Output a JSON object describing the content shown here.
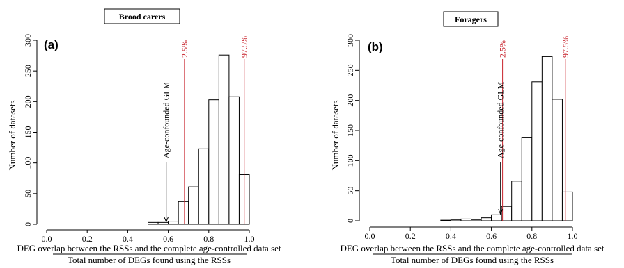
{
  "colors": {
    "bars": "#ffffff",
    "bar_stroke": "#000000",
    "quantile_lines": "#c8232c",
    "text": "#000000"
  },
  "chart_data": [
    {
      "type": "bar",
      "panel_label": "(a)",
      "title": "Brood carers",
      "xlabel": "DEG overlap between the RSSs and the complete age-controlled data set",
      "xlabel_denominator": "Total number of DEGs found using the RSSs",
      "ylabel": "Number of datasets",
      "xlim": [
        0.0,
        1.0
      ],
      "ylim": [
        0,
        300
      ],
      "xticks": [
        0.0,
        0.2,
        0.4,
        0.6,
        0.8,
        1.0
      ],
      "xtick_labels": [
        "0.0",
        "0.2",
        "0.4",
        "0.6",
        "0.8",
        "1.0"
      ],
      "yticks": [
        0,
        50,
        100,
        150,
        200,
        250,
        300
      ],
      "ytick_labels": [
        "0",
        "50",
        "100",
        "150",
        "200",
        "250",
        "300"
      ],
      "bin_edges": [
        0.5,
        0.55,
        0.6,
        0.65,
        0.7,
        0.75,
        0.8,
        0.85,
        0.9,
        0.95,
        1.0
      ],
      "values": [
        3,
        3,
        5,
        37,
        61,
        123,
        203,
        276,
        208,
        81
      ],
      "quantile_lines": [
        {
          "x": 0.68,
          "label": "2.5%"
        },
        {
          "x": 0.975,
          "label": "97.5%"
        }
      ],
      "arrow": {
        "x": 0.59,
        "y": 3,
        "label": "Age-confounded GLM"
      },
      "grid": false
    },
    {
      "type": "bar",
      "panel_label": "(b)",
      "title": "Foragers",
      "xlabel": "DEG overlap between the RSSs and the complete age-controlled data set",
      "xlabel_denominator": "Total number of DEGs found using the RSSs",
      "ylabel": "Number of datasets",
      "xlim": [
        0.0,
        1.0
      ],
      "ylim": [
        0,
        300
      ],
      "xticks": [
        0.0,
        0.2,
        0.4,
        0.6,
        0.8,
        1.0
      ],
      "xtick_labels": [
        "0.0",
        "0.2",
        "0.4",
        "0.6",
        "0.8",
        "1.0"
      ],
      "yticks": [
        0,
        50,
        100,
        150,
        200,
        250,
        300
      ],
      "ytick_labels": [
        "0",
        "50",
        "100",
        "150",
        "200",
        "250",
        "300"
      ],
      "bin_edges": [
        0.35,
        0.4,
        0.45,
        0.5,
        0.55,
        0.6,
        0.65,
        0.7,
        0.75,
        0.8,
        0.85,
        0.9,
        0.95,
        1.0
      ],
      "values": [
        1,
        2,
        3,
        2,
        5,
        10,
        24,
        66,
        138,
        231,
        273,
        202,
        48
      ],
      "quantile_lines": [
        {
          "x": 0.655,
          "label": "2.5%"
        },
        {
          "x": 0.965,
          "label": "97.5%"
        }
      ],
      "arrow": {
        "x": 0.645,
        "y": 10,
        "label": "Age-confounded GLM"
      },
      "grid": false
    }
  ]
}
